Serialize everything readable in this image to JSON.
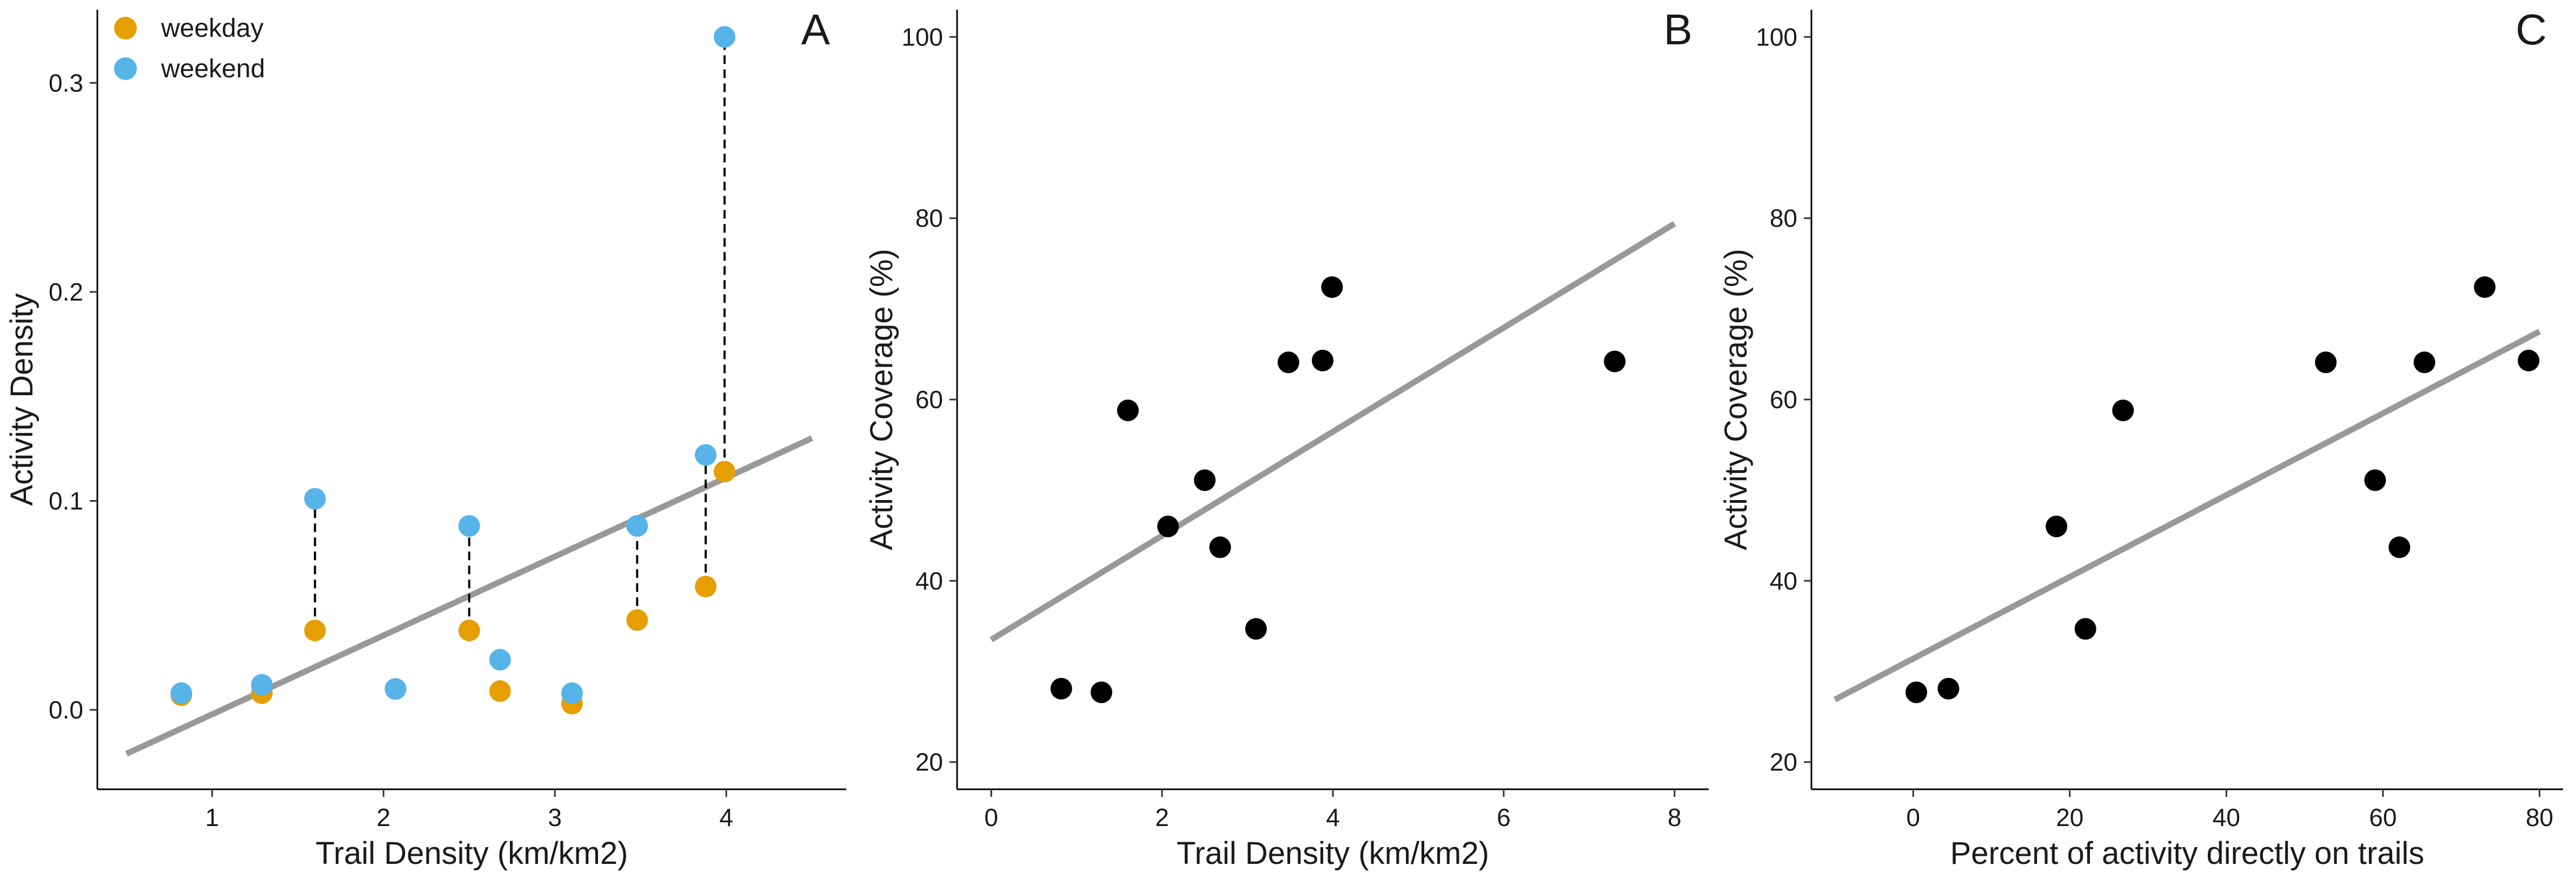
{
  "chart_data": [
    {
      "panel_label": "A",
      "type": "scatter",
      "xlabel": "Trail Density (km/km2)",
      "ylabel": "Activity Density",
      "xlim": [
        0.33,
        4.7
      ],
      "ylim": [
        -0.038,
        0.335
      ],
      "xticks": [
        1,
        2,
        3,
        4
      ],
      "yticks": [
        0.0,
        0.1,
        0.2,
        0.3
      ],
      "ytick_labels": [
        "0.0",
        "0.1",
        "0.2",
        "0.3"
      ],
      "legend_position": "top-left",
      "series": [
        {
          "name": "weekday",
          "color": "#E69F00",
          "points": [
            [
              0.82,
              0.007
            ],
            [
              1.29,
              0.008
            ],
            [
              1.6,
              0.038
            ],
            [
              2.07,
              0.01
            ],
            [
              2.5,
              0.038
            ],
            [
              2.68,
              0.009
            ],
            [
              3.1,
              0.003
            ],
            [
              3.48,
              0.043
            ],
            [
              3.88,
              0.059
            ],
            [
              3.99,
              0.114
            ]
          ]
        },
        {
          "name": "weekend",
          "color": "#56B4E9",
          "points": [
            [
              0.82,
              0.008
            ],
            [
              1.29,
              0.012
            ],
            [
              1.6,
              0.101
            ],
            [
              2.07,
              0.01
            ],
            [
              2.5,
              0.088
            ],
            [
              2.68,
              0.024
            ],
            [
              3.1,
              0.008
            ],
            [
              3.48,
              0.088
            ],
            [
              3.88,
              0.122
            ],
            [
              3.99,
              0.322
            ]
          ]
        }
      ],
      "paired_connectors_dashed": [
        [
          1.6,
          0.038,
          0.101
        ],
        [
          2.5,
          0.038,
          0.088
        ],
        [
          3.48,
          0.043,
          0.088
        ],
        [
          3.88,
          0.059,
          0.122
        ],
        [
          3.99,
          0.114,
          0.322
        ]
      ],
      "fit_line": {
        "color": "#999999",
        "x": [
          0.5,
          4.5
        ],
        "y": [
          -0.021,
          0.13
        ]
      },
      "grid": false
    },
    {
      "panel_label": "B",
      "type": "scatter",
      "xlabel": "Trail Density (km/km2)",
      "ylabel": "Activity Coverage (%)",
      "xlim": [
        -0.4,
        8.4
      ],
      "ylim": [
        17,
        103
      ],
      "xticks": [
        0,
        2,
        4,
        6,
        8
      ],
      "yticks": [
        20,
        40,
        60,
        80,
        100
      ],
      "series": [
        {
          "color": "#000000",
          "points": [
            [
              0.82,
              28.1
            ],
            [
              1.29,
              27.7
            ],
            [
              1.6,
              58.8
            ],
            [
              2.07,
              46
            ],
            [
              2.5,
              51.1
            ],
            [
              2.68,
              43.7
            ],
            [
              3.1,
              34.7
            ],
            [
              3.48,
              64.1
            ],
            [
              3.88,
              64.3
            ],
            [
              3.99,
              72.4
            ],
            [
              7.3,
              64.2
            ]
          ]
        }
      ],
      "fit_line": {
        "color": "#999999",
        "x": [
          0,
          8
        ],
        "y": [
          33.5,
          79.4
        ]
      },
      "grid": false
    },
    {
      "panel_label": "C",
      "type": "scatter",
      "xlabel": "Percent of activity directly on trails",
      "ylabel": "Activity Coverage (%)",
      "xlim": [
        -13,
        83
      ],
      "ylim": [
        17,
        103
      ],
      "xticks": [
        0,
        20,
        40,
        60,
        80
      ],
      "yticks": [
        20,
        40,
        60,
        80,
        100
      ],
      "series": [
        {
          "color": "#000000",
          "points": [
            [
              0.4,
              27.7
            ],
            [
              4.5,
              28.1
            ],
            [
              18.3,
              46
            ],
            [
              22,
              34.7
            ],
            [
              26.8,
              58.8
            ],
            [
              52.7,
              64.1
            ],
            [
              59,
              51.1
            ],
            [
              62.1,
              43.7
            ],
            [
              65.3,
              64.1
            ],
            [
              73,
              72.4
            ],
            [
              78.6,
              64.3
            ]
          ]
        }
      ],
      "fit_line": {
        "color": "#999999",
        "x": [
          -10,
          80
        ],
        "y": [
          26.9,
          67.5
        ]
      },
      "grid": false
    }
  ]
}
